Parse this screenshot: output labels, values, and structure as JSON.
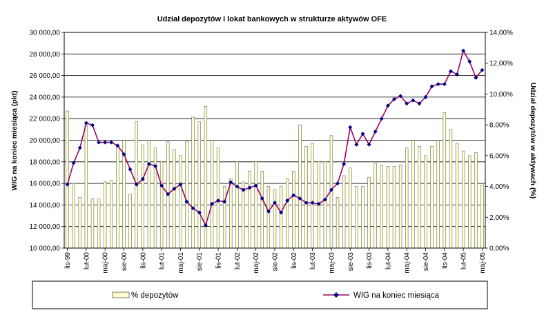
{
  "chart_data": {
    "type": "bar+line",
    "title": "Udział depozytów i lokat bankowych w strukturze aktywów OFE",
    "left_axis": {
      "label": "WIG na koniec miesiąca (pkt)",
      "ylim": [
        10000,
        30000
      ],
      "ticks": [
        10000,
        12000,
        14000,
        16000,
        18000,
        20000,
        22000,
        24000,
        26000,
        28000,
        30000
      ],
      "tick_labels": [
        "10 000,00",
        "12 000,00",
        "14 000,00",
        "16 000,00",
        "18 000,00",
        "20 000,00",
        "22 000,00",
        "24 000,00",
        "26 000,00",
        "28 000,00",
        "30 000,00"
      ]
    },
    "right_axis": {
      "label": "Udział depozytów w aktywach (%)",
      "ylim": [
        0,
        14
      ],
      "ticks": [
        0,
        2,
        4,
        6,
        8,
        10,
        12,
        14
      ],
      "tick_labels": [
        "0,00%",
        "2,00%",
        "4,00%",
        "6,00%",
        "8,00%",
        "10,00%",
        "12,00%",
        "14,00%"
      ]
    },
    "x_labels": [
      {
        "index": 0,
        "label": "lis-99"
      },
      {
        "index": 3,
        "label": "lut-00"
      },
      {
        "index": 6,
        "label": "maj-00"
      },
      {
        "index": 9,
        "label": "sie-00"
      },
      {
        "index": 12,
        "label": "lis-00"
      },
      {
        "index": 15,
        "label": "lut-01"
      },
      {
        "index": 18,
        "label": "maj-01"
      },
      {
        "index": 21,
        "label": "sie-01"
      },
      {
        "index": 24,
        "label": "lis-01"
      },
      {
        "index": 27,
        "label": "lut-02"
      },
      {
        "index": 30,
        "label": "maj-02"
      },
      {
        "index": 33,
        "label": "sie-02"
      },
      {
        "index": 36,
        "label": "lis-02"
      },
      {
        "index": 39,
        "label": "lut-03"
      },
      {
        "index": 42,
        "label": "maj-03"
      },
      {
        "index": 45,
        "label": "sie-03"
      },
      {
        "index": 48,
        "label": "lis-03"
      },
      {
        "index": 51,
        "label": "lut-04"
      },
      {
        "index": 54,
        "label": "maj-04"
      },
      {
        "index": 57,
        "label": "sie-04"
      },
      {
        "index": 60,
        "label": "lis-04"
      },
      {
        "index": 63,
        "label": "lut-05"
      },
      {
        "index": 66,
        "label": "maj-05"
      }
    ],
    "series": [
      {
        "name": "% depozytów",
        "type": "bar",
        "axis": "right",
        "color": "#ffffcc",
        "edge": "#666666",
        "values": [
          8.9,
          4.2,
          3.3,
          8.0,
          3.2,
          3.2,
          4.3,
          4.4,
          6.7,
          7.0,
          3.5,
          8.2,
          6.7,
          7.0,
          6.5,
          5.6,
          6.9,
          6.4,
          6.0,
          6.9,
          8.5,
          8.2,
          9.2,
          7.0,
          6.5,
          4.0,
          4.5,
          5.6,
          4.3,
          5.0,
          5.6,
          5.0,
          4.0,
          3.8,
          4.0,
          4.5,
          5.0,
          8.0,
          6.6,
          6.8,
          5.6,
          5.6,
          7.3,
          3.3,
          4.7,
          5.2,
          4.0,
          4.0,
          4.6,
          5.5,
          5.4,
          5.3,
          5.3,
          5.4,
          6.5,
          7.0,
          6.6,
          6.0,
          6.6,
          7.0,
          8.8,
          7.7,
          6.8,
          6.3,
          6.0,
          6.2,
          4.1
        ]
      },
      {
        "name": "WIG na koniec miesiąca",
        "type": "line",
        "axis": "left",
        "color": "#990066",
        "marker_color": "#000080",
        "values": [
          15900,
          17900,
          19300,
          21600,
          21400,
          19800,
          19800,
          19800,
          19500,
          18700,
          17300,
          15900,
          16400,
          17800,
          17600,
          15800,
          15000,
          15500,
          15900,
          14300,
          13700,
          13300,
          12100,
          14100,
          14400,
          14300,
          16100,
          15700,
          15400,
          15600,
          15800,
          14600,
          13400,
          14200,
          13300,
          14400,
          14900,
          14600,
          14200,
          14200,
          14100,
          14500,
          15400,
          16000,
          17800,
          21200,
          19600,
          20600,
          19600,
          20800,
          22000,
          23200,
          23800,
          24100,
          23400,
          23700,
          23400,
          24000,
          25000,
          25200,
          25200,
          26400,
          26100,
          28300,
          27300,
          25800,
          26500
        ]
      }
    ],
    "legend": {
      "position": "bottom",
      "bar_label": "% depozytów",
      "line_label": "WIG na koniec miesiąca"
    }
  }
}
